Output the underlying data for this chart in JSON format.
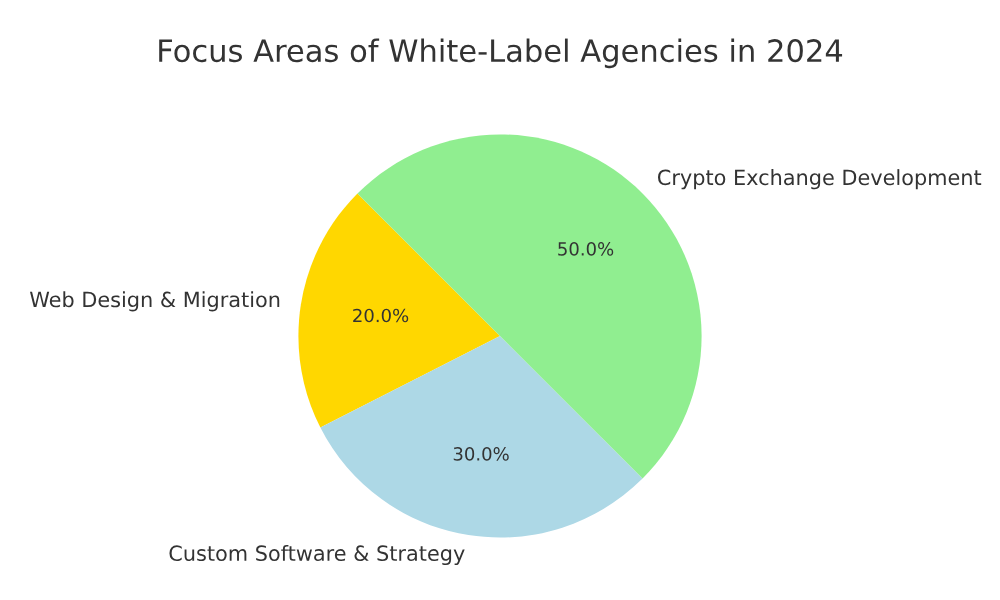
{
  "chart_data": {
    "type": "pie",
    "title": "Focus Areas of White-Label Agencies in 2024",
    "categories": [
      "Web Design & Migration",
      "Custom Software & Strategy",
      "Crypto Exchange Development"
    ],
    "values": [
      20,
      30,
      50
    ],
    "colors": [
      "#ffd700",
      "#add8e6",
      "#90ee90"
    ],
    "value_labels": [
      "20.0%",
      "30.0%",
      "50.0%"
    ]
  }
}
